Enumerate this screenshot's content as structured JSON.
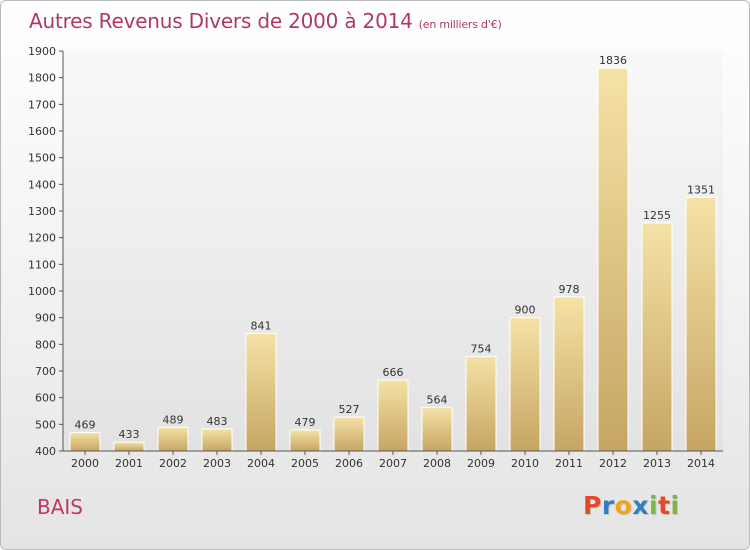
{
  "header": {
    "title": "Autres Revenus Divers de 2000 à 2014",
    "subtitle": "(en milliers d'€)"
  },
  "footer": {
    "place": "BAIS",
    "logo_text": "Proxiti",
    "logo_letter_colors": [
      "#e8482a",
      "#2f7fc1",
      "#f2a31b",
      "#2f7fc1",
      "#7ab648",
      "#e8482a",
      "#7ab648"
    ]
  },
  "colors": {
    "title": "#b03a5a",
    "bar_light": "#f3dc98",
    "bar_dark": "#c8a866",
    "axis_text": "#333333"
  },
  "chart_data": {
    "type": "bar",
    "categories": [
      "2000",
      "2001",
      "2002",
      "2003",
      "2004",
      "2005",
      "2006",
      "2007",
      "2008",
      "2009",
      "2010",
      "2011",
      "2012",
      "2013",
      "2014"
    ],
    "values": [
      469,
      433,
      489,
      483,
      841,
      479,
      527,
      666,
      564,
      754,
      900,
      978,
      1836,
      1255,
      1351
    ],
    "title": "Autres Revenus Divers de 2000 à 2014",
    "xlabel": "",
    "ylabel": "",
    "ylim": [
      400,
      1900
    ],
    "yticks": [
      400,
      500,
      600,
      700,
      800,
      900,
      1000,
      1100,
      1200,
      1300,
      1400,
      1500,
      1600,
      1700,
      1800,
      1900
    ],
    "grid": false,
    "data_labels": true
  }
}
